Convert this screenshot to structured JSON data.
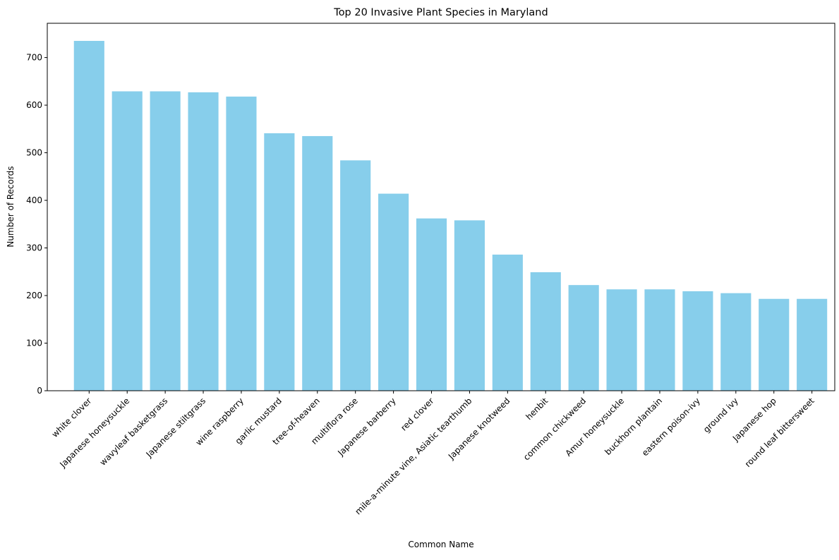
{
  "chart_data": {
    "type": "bar",
    "title": "Top 20 Invasive Plant Species in Maryland",
    "xlabel": "Common Name",
    "ylabel": "Number of Records",
    "ylim": [
      0,
      772
    ],
    "yticks": [
      0,
      100,
      200,
      300,
      400,
      500,
      600,
      700
    ],
    "grid": false,
    "bar_color": "#87CEEB",
    "categories": [
      "white clover",
      "Japanese honeysuckle",
      "wavyleaf basketgrass",
      "Japanese stiltgrass",
      "wine raspberry",
      "garlic mustard",
      "tree-of-heaven",
      "multiflora rose",
      "Japanese barberry",
      "red clover",
      "mile-a-minute vine, Asiatic tearthumb",
      "Japanese knotweed",
      "henbit",
      "common chickweed",
      "Amur honeysuckle",
      "buckhorn plantain",
      "eastern poison-ivy",
      "ground ivy",
      "Japanese hop",
      "round leaf bittersweet"
    ],
    "values": [
      735,
      629,
      629,
      627,
      618,
      541,
      535,
      484,
      414,
      362,
      358,
      286,
      249,
      222,
      213,
      213,
      209,
      205,
      193,
      193
    ]
  }
}
